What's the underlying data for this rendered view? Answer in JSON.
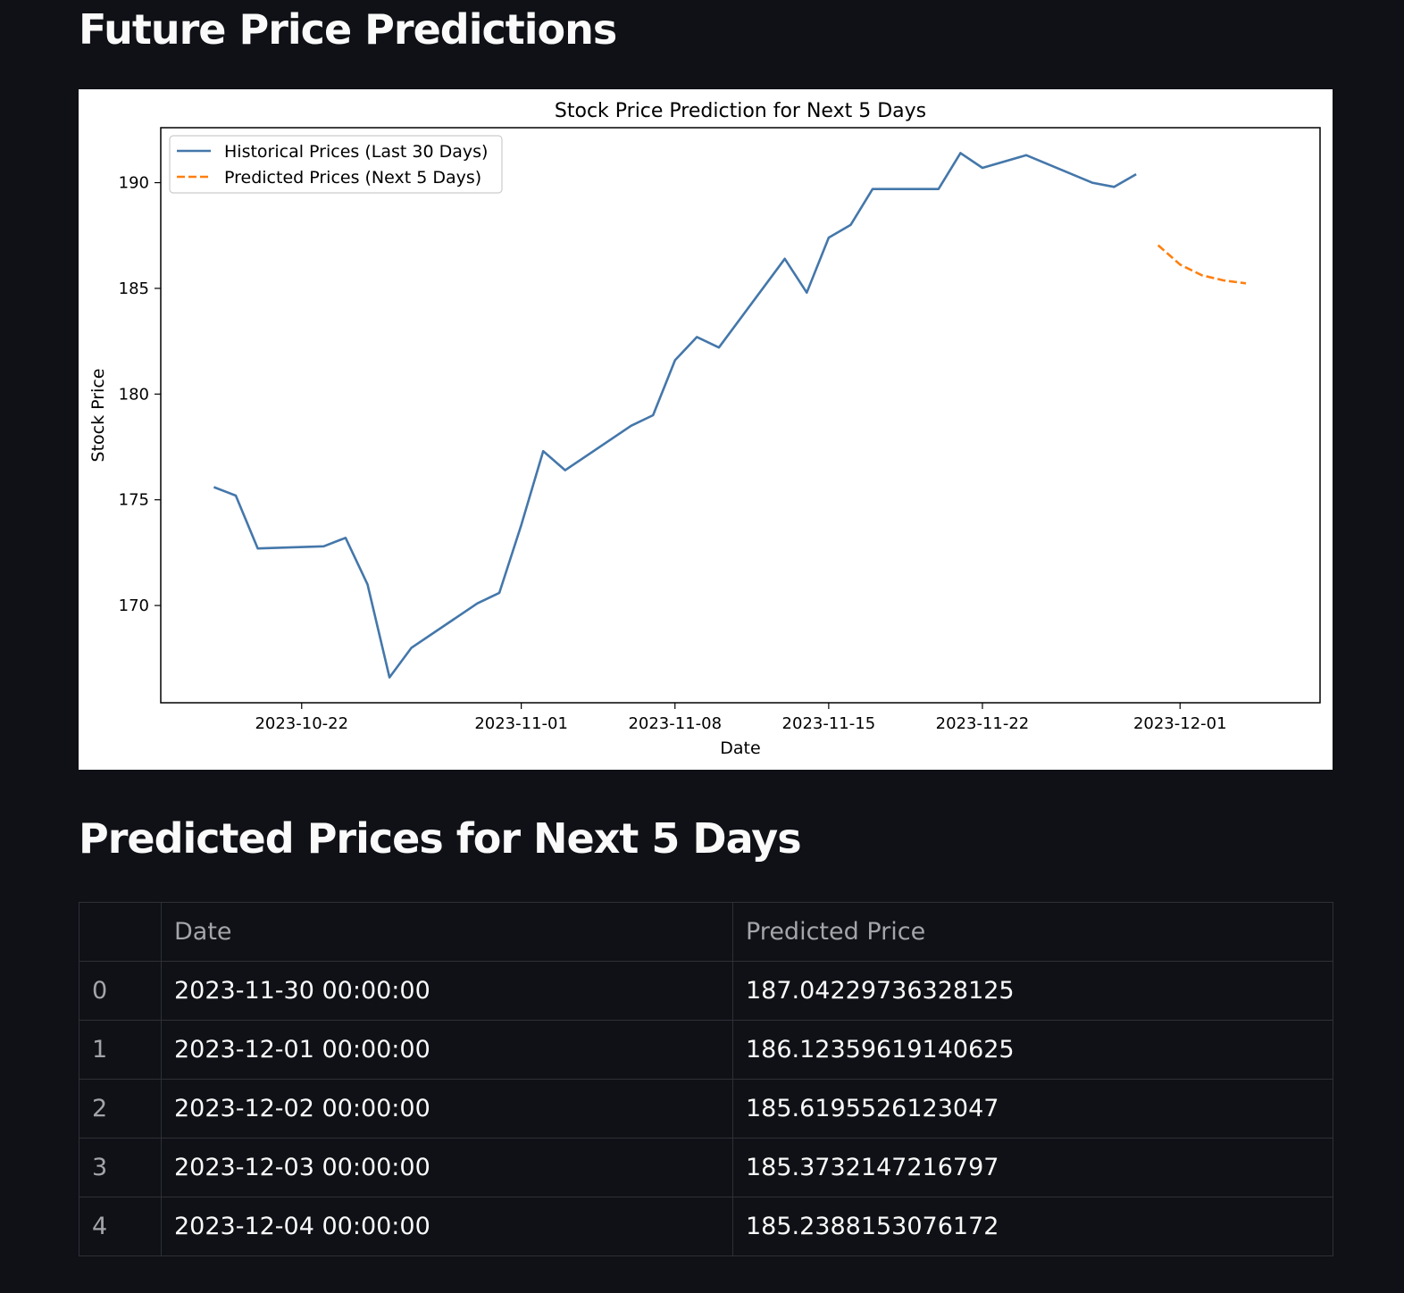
{
  "page": {
    "title": "Future Price Predictions",
    "table_heading": "Predicted Prices for Next 5 Days"
  },
  "chart_data": {
    "type": "line",
    "title": "Stock Price Prediction for Next 5 Days",
    "xlabel": "Date",
    "ylabel": "Stock Price",
    "x_ticks": [
      "2023-10-22",
      "2023-11-01",
      "2023-11-08",
      "2023-11-15",
      "2023-11-22",
      "2023-12-01"
    ],
    "y_ticks": [
      170,
      175,
      180,
      185,
      190
    ],
    "ylim": [
      165.4,
      192.6
    ],
    "xlim": [
      "2023-10-15T14:00",
      "2023-12-07T09:00"
    ],
    "legend_position": "upper-left",
    "grid": false,
    "series": [
      {
        "name": "Historical Prices (Last 30 Days)",
        "color": "#4477aa",
        "style": "solid",
        "points": [
          [
            "2023-10-18",
            175.6
          ],
          [
            "2023-10-19",
            175.2
          ],
          [
            "2023-10-20",
            172.7
          ],
          [
            "2023-10-23",
            172.8
          ],
          [
            "2023-10-24",
            173.2
          ],
          [
            "2023-10-25",
            171.0
          ],
          [
            "2023-10-26",
            166.6
          ],
          [
            "2023-10-27",
            168.0
          ],
          [
            "2023-10-30",
            170.1
          ],
          [
            "2023-10-31",
            170.6
          ],
          [
            "2023-11-01",
            173.8
          ],
          [
            "2023-11-02",
            177.3
          ],
          [
            "2023-11-03",
            176.4
          ],
          [
            "2023-11-06",
            178.5
          ],
          [
            "2023-11-07",
            179.0
          ],
          [
            "2023-11-08",
            181.6
          ],
          [
            "2023-11-09",
            182.7
          ],
          [
            "2023-11-10",
            182.2
          ],
          [
            "2023-11-13",
            186.4
          ],
          [
            "2023-11-14",
            184.8
          ],
          [
            "2023-11-15",
            187.4
          ],
          [
            "2023-11-16",
            188.0
          ],
          [
            "2023-11-17",
            189.7
          ],
          [
            "2023-11-20",
            189.7
          ],
          [
            "2023-11-21",
            191.4
          ],
          [
            "2023-11-22",
            190.7
          ],
          [
            "2023-11-24",
            191.3
          ],
          [
            "2023-11-27",
            190.0
          ],
          [
            "2023-11-28",
            189.8
          ],
          [
            "2023-11-29",
            190.4
          ]
        ]
      },
      {
        "name": "Predicted Prices (Next 5 Days)",
        "color": "#ff7f0e",
        "style": "dashed",
        "points": [
          [
            "2023-11-30",
            187.04229736328125
          ],
          [
            "2023-12-01",
            186.12359619140625
          ],
          [
            "2023-12-02",
            185.6195526123047
          ],
          [
            "2023-12-03",
            185.3732147216797
          ],
          [
            "2023-12-04",
            185.2388153076172
          ]
        ]
      }
    ]
  },
  "table": {
    "columns": [
      "",
      "Date",
      "Predicted Price"
    ],
    "rows": [
      [
        "0",
        "2023-11-30 00:00:00",
        "187.04229736328125"
      ],
      [
        "1",
        "2023-12-01 00:00:00",
        "186.12359619140625"
      ],
      [
        "2",
        "2023-12-02 00:00:00",
        "185.6195526123047"
      ],
      [
        "3",
        "2023-12-03 00:00:00",
        "185.3732147216797"
      ],
      [
        "4",
        "2023-12-04 00:00:00",
        "185.2388153076172"
      ]
    ]
  }
}
